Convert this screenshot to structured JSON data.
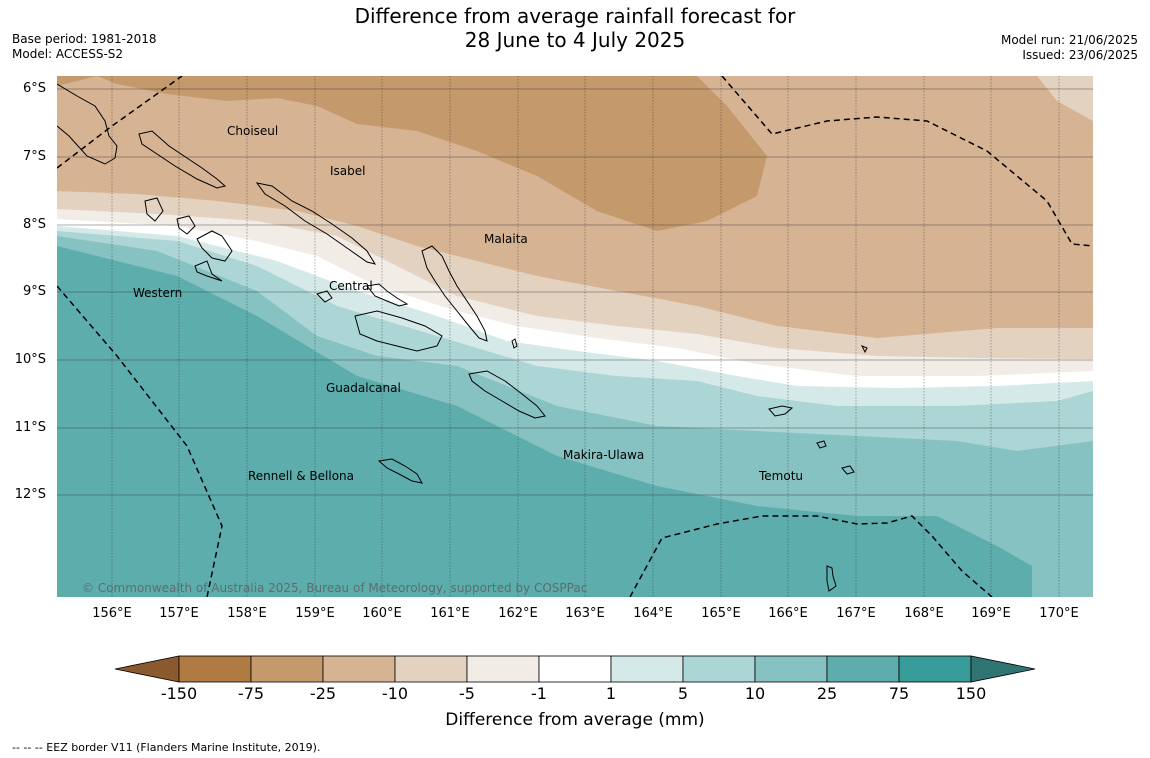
{
  "title": {
    "line1": "Difference from average rainfall forecast for",
    "line2": "28 June to 4 July 2025"
  },
  "meta_left": {
    "base_period": "Base period: 1981-2018",
    "model": "Model: ACCESS-S2"
  },
  "meta_right": {
    "model_run": "Model run: 21/06/2025",
    "issued": "Issued: 23/06/2025"
  },
  "map": {
    "lat_labels": [
      "6°S",
      "7°S",
      "8°S",
      "9°S",
      "10°S",
      "11°S",
      "12°S"
    ],
    "lon_labels": [
      "156°E",
      "157°E",
      "158°E",
      "159°E",
      "160°E",
      "161°E",
      "162°E",
      "163°E",
      "164°E",
      "165°E",
      "166°E",
      "167°E",
      "168°E",
      "169°E",
      "170°E"
    ],
    "places": [
      {
        "name": "Choiseul"
      },
      {
        "name": "Isabel"
      },
      {
        "name": "Malaita"
      },
      {
        "name": "Western"
      },
      {
        "name": "Central"
      },
      {
        "name": "Guadalcanal"
      },
      {
        "name": "Makira-Ulawa"
      },
      {
        "name": "Temotu"
      },
      {
        "name": "Rennell & Bellona"
      }
    ],
    "copyright": "© Commonwealth of Australia 2025, Bureau of Meteorology, supported by COSPPac"
  },
  "colorbar": {
    "ticks": [
      "-150",
      "-75",
      "-25",
      "-10",
      "-5",
      "-1",
      "1",
      "5",
      "10",
      "25",
      "75",
      "150"
    ],
    "colors": [
      "#b07a43",
      "#c49a6c",
      "#d5b393",
      "#e4d2c1",
      "#f2ece6",
      "#ffffff",
      "#d5e9e8",
      "#acd5d5",
      "#86c2c2",
      "#5eadad",
      "#379b99"
    ],
    "under_color": "#8a5a2e",
    "over_color": "#2f7473",
    "label": "Difference from average (mm)"
  },
  "footer": "--  --  -- EEZ border V11 (Flanders Marine Institute, 2019)."
}
